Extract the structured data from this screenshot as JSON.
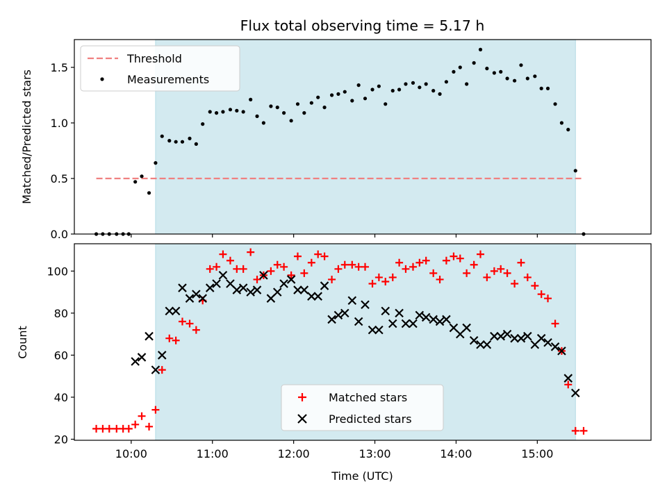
{
  "title": "Flux total observing time = 5.17 h",
  "xlabel": "Time (UTC)",
  "x_tick_labels": [
    "10:00",
    "11:00",
    "12:00",
    "13:00",
    "14:00",
    "15:00"
  ],
  "shade_color": "#d3eaf0",
  "chart_data": [
    {
      "type": "scatter",
      "ylabel": "Matched/Predicted stars",
      "ylim": [
        0,
        1.75
      ],
      "xlim_hours": [
        9.3,
        16.4
      ],
      "y_ticks": [
        0.0,
        0.5,
        1.0,
        1.5
      ],
      "y_tick_labels": [
        "0.0",
        "0.5",
        "1.0",
        "1.5"
      ],
      "shaded_interval_hours": [
        10.3,
        15.47
      ],
      "legend_position": "upper-left",
      "threshold": {
        "name": "Threshold",
        "value": 0.5,
        "x_range_hours": [
          9.57,
          15.57
        ],
        "color": "#f08080"
      },
      "series": [
        {
          "name": "Measurements",
          "color": "#000000",
          "marker": "dot",
          "x": [
            9.57,
            9.65,
            9.73,
            9.82,
            9.9,
            9.97,
            10.05,
            10.13,
            10.22,
            10.3,
            10.38,
            10.47,
            10.55,
            10.63,
            10.72,
            10.8,
            10.88,
            10.97,
            11.05,
            11.13,
            11.22,
            11.3,
            11.38,
            11.47,
            11.55,
            11.63,
            11.72,
            11.8,
            11.88,
            11.97,
            12.05,
            12.13,
            12.22,
            12.3,
            12.38,
            12.47,
            12.55,
            12.63,
            12.72,
            12.8,
            12.88,
            12.97,
            13.05,
            13.13,
            13.22,
            13.3,
            13.38,
            13.47,
            13.55,
            13.63,
            13.72,
            13.8,
            13.88,
            13.97,
            14.05,
            14.13,
            14.22,
            14.3,
            14.38,
            14.47,
            14.55,
            14.63,
            14.72,
            14.8,
            14.88,
            14.97,
            15.05,
            15.13,
            15.22,
            15.3,
            15.38,
            15.47,
            15.57
          ],
          "y": [
            0,
            0,
            0,
            0,
            0,
            0,
            0.47,
            0.52,
            0.37,
            0.64,
            0.88,
            0.84,
            0.83,
            0.83,
            0.86,
            0.81,
            0.99,
            1.1,
            1.09,
            1.1,
            1.12,
            1.11,
            1.1,
            1.21,
            1.06,
            1.0,
            1.15,
            1.14,
            1.09,
            1.02,
            1.17,
            1.09,
            1.18,
            1.23,
            1.14,
            1.25,
            1.26,
            1.28,
            1.2,
            1.34,
            1.22,
            1.3,
            1.33,
            1.17,
            1.29,
            1.3,
            1.35,
            1.36,
            1.32,
            1.35,
            1.29,
            1.26,
            1.37,
            1.46,
            1.5,
            1.35,
            1.54,
            1.66,
            1.49,
            1.45,
            1.46,
            1.4,
            1.38,
            1.52,
            1.4,
            1.42,
            1.31,
            1.31,
            1.17,
            1.0,
            0.94,
            0.57,
            0
          ]
        }
      ]
    },
    {
      "type": "scatter",
      "ylabel": "Count",
      "ylim": [
        19.5,
        113
      ],
      "xlim_hours": [
        9.3,
        16.4
      ],
      "y_ticks": [
        20,
        40,
        60,
        80,
        100
      ],
      "y_tick_labels": [
        "20",
        "40",
        "60",
        "80",
        "100"
      ],
      "shaded_interval_hours": [
        10.3,
        15.47
      ],
      "legend_position": "lower-center",
      "series": [
        {
          "name": "Matched stars",
          "color": "#ff0000",
          "marker": "plus",
          "x": [
            9.57,
            9.65,
            9.73,
            9.82,
            9.9,
            9.97,
            10.05,
            10.13,
            10.22,
            10.3,
            10.38,
            10.47,
            10.55,
            10.63,
            10.72,
            10.8,
            10.88,
            10.97,
            11.05,
            11.13,
            11.22,
            11.3,
            11.38,
            11.47,
            11.55,
            11.63,
            11.72,
            11.8,
            11.88,
            11.97,
            12.05,
            12.13,
            12.22,
            12.3,
            12.38,
            12.47,
            12.55,
            12.63,
            12.72,
            12.8,
            12.88,
            12.97,
            13.05,
            13.13,
            13.22,
            13.3,
            13.38,
            13.47,
            13.55,
            13.63,
            13.72,
            13.8,
            13.88,
            13.97,
            14.05,
            14.13,
            14.22,
            14.3,
            14.38,
            14.47,
            14.55,
            14.63,
            14.72,
            14.8,
            14.88,
            14.97,
            15.05,
            15.13,
            15.22,
            15.3,
            15.38,
            15.47,
            15.57
          ],
          "y": [
            25,
            25,
            25,
            25,
            25,
            25,
            27,
            31,
            26,
            34,
            53,
            68,
            67,
            76,
            75,
            72,
            86,
            101,
            102,
            108,
            105,
            101,
            101,
            109,
            96,
            98,
            100,
            103,
            102,
            98,
            107,
            99,
            104,
            108,
            107,
            96,
            101,
            103,
            103,
            102,
            102,
            94,
            97,
            95,
            97,
            104,
            101,
            102,
            104,
            105,
            99,
            96,
            105,
            107,
            106,
            99,
            103,
            108,
            97,
            100,
            101,
            99,
            94,
            104,
            97,
            93,
            89,
            87,
            75,
            62,
            46,
            24,
            24
          ]
        },
        {
          "name": "Predicted stars",
          "color": "#000000",
          "marker": "cross",
          "x": [
            10.05,
            10.13,
            10.22,
            10.3,
            10.38,
            10.47,
            10.55,
            10.63,
            10.72,
            10.8,
            10.88,
            10.97,
            11.05,
            11.13,
            11.22,
            11.3,
            11.38,
            11.47,
            11.55,
            11.63,
            11.72,
            11.8,
            11.88,
            11.97,
            12.05,
            12.13,
            12.22,
            12.3,
            12.38,
            12.47,
            12.55,
            12.63,
            12.72,
            12.8,
            12.88,
            12.97,
            13.05,
            13.13,
            13.22,
            13.3,
            13.38,
            13.47,
            13.55,
            13.63,
            13.72,
            13.8,
            13.88,
            13.97,
            14.05,
            14.13,
            14.22,
            14.3,
            14.38,
            14.47,
            14.55,
            14.63,
            14.72,
            14.8,
            14.88,
            14.97,
            15.05,
            15.13,
            15.22,
            15.3,
            15.38,
            15.47
          ],
          "y": [
            57,
            59,
            69,
            53,
            60,
            81,
            81,
            92,
            87,
            89,
            87,
            92,
            94,
            98,
            94,
            91,
            92,
            90,
            91,
            98,
            87,
            90,
            94,
            96,
            91,
            91,
            88,
            88,
            93,
            77,
            79,
            80,
            86,
            76,
            84,
            72,
            72,
            81,
            75,
            80,
            75,
            75,
            79,
            78,
            77,
            76,
            77,
            73,
            70,
            73,
            67,
            65,
            65,
            69,
            69,
            70,
            68,
            68,
            69,
            65,
            68,
            66,
            64,
            62,
            49,
            42
          ]
        }
      ]
    }
  ]
}
